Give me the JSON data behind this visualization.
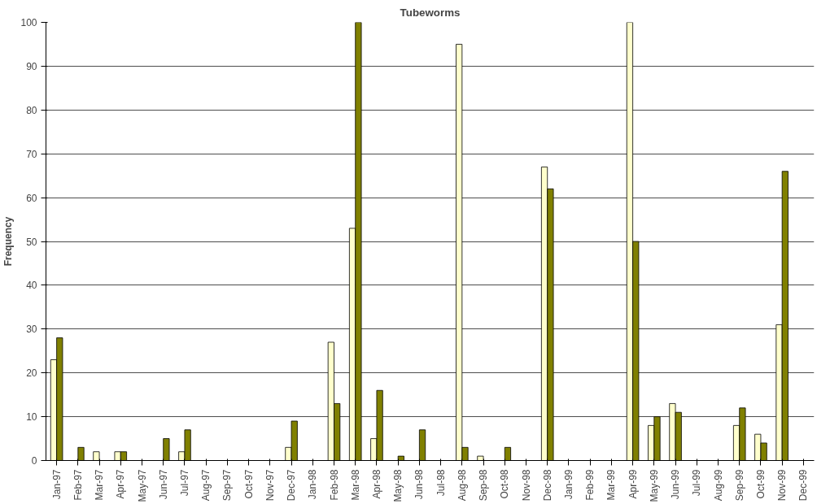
{
  "chart_data": {
    "type": "bar",
    "title": "Tubeworms",
    "ylabel": "Frequency",
    "categories": [
      "Jan-97",
      "Feb-97",
      "Mar-97",
      "Apr-97",
      "May-97",
      "Jun-97",
      "Jul-97",
      "Aug-97",
      "Sep-97",
      "Oct-97",
      "Nov-97",
      "Dec-97",
      "Jan-98",
      "Feb-98",
      "Mar-98",
      "Apr-98",
      "May-98",
      "Jun-98",
      "Jul-98",
      "Aug-98",
      "Sep-98",
      "Oct-98",
      "Nov-98",
      "Dec-98",
      "Jan-99",
      "Feb-99",
      "Mar-99",
      "Apr-99",
      "May-99",
      "Jun-99",
      "Jul-99",
      "Aug-99",
      "Sep-99",
      "Oct-99",
      "Nov-99",
      "Dec-99"
    ],
    "series": [
      {
        "color": "#ffffcc",
        "values": [
          23,
          0,
          2,
          2,
          0,
          0,
          2,
          0,
          0,
          0,
          0,
          3,
          0,
          27,
          53,
          5,
          0,
          0,
          0,
          95,
          1,
          0,
          0,
          67,
          0,
          0,
          0,
          100,
          8,
          13,
          0,
          0,
          8,
          6,
          31,
          0
        ]
      },
      {
        "color": "#808000",
        "values": [
          28,
          3,
          0,
          2,
          0,
          5,
          7,
          0,
          0,
          0,
          0,
          9,
          0,
          13,
          100,
          16,
          1,
          7,
          0,
          3,
          0,
          3,
          0,
          62,
          0,
          0,
          0,
          50,
          10,
          11,
          0,
          0,
          12,
          4,
          66,
          0
        ]
      }
    ],
    "ylim": [
      0,
      100
    ],
    "yticks": [
      0,
      10,
      20,
      30,
      40,
      50,
      60,
      70,
      80,
      90,
      100
    ],
    "grid": "y"
  }
}
